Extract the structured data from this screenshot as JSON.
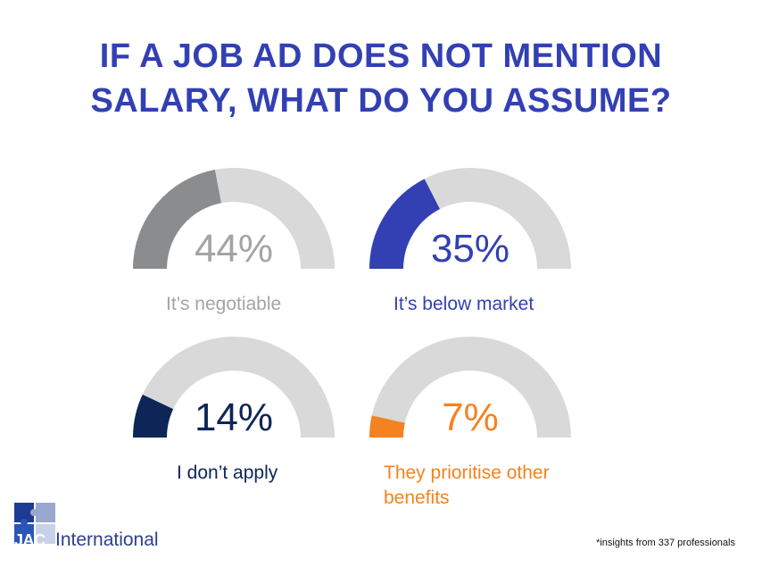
{
  "title": {
    "line1": "IF A JOB AD DOES NOT MENTION",
    "line2": "SALARY, WHAT DO YOU ASSUME?"
  },
  "colors": {
    "title": "#3340b3",
    "track": "#d9d9d9",
    "negotiable": "#8a8c8e",
    "negotiable_text": "#a2a4a6",
    "below_market": "#3340b3",
    "dont_apply": "#0d2557",
    "other_benefits": "#f58220"
  },
  "chart_data": {
    "type": "gauge",
    "unit": "%",
    "max": 100,
    "items": [
      {
        "label": "It’s negotiable",
        "value": 44,
        "display": "44%",
        "color": "#8a8c8e",
        "text_color": "#a2a4a6"
      },
      {
        "label": "It’s below market",
        "value": 35,
        "display": "35%",
        "color": "#3340b3",
        "text_color": "#3340b3"
      },
      {
        "label": "I don’t apply",
        "value": 14,
        "display": "14%",
        "color": "#0d2557",
        "text_color": "#0d2557"
      },
      {
        "label_lines": [
          "They prioritise other",
          "benefits"
        ],
        "value": 7,
        "display": "7%",
        "color": "#f58220",
        "text_color": "#f58220"
      }
    ]
  },
  "logo": {
    "mark": "JAC",
    "name": "International"
  },
  "footnote": "*insights from 337 professionals"
}
